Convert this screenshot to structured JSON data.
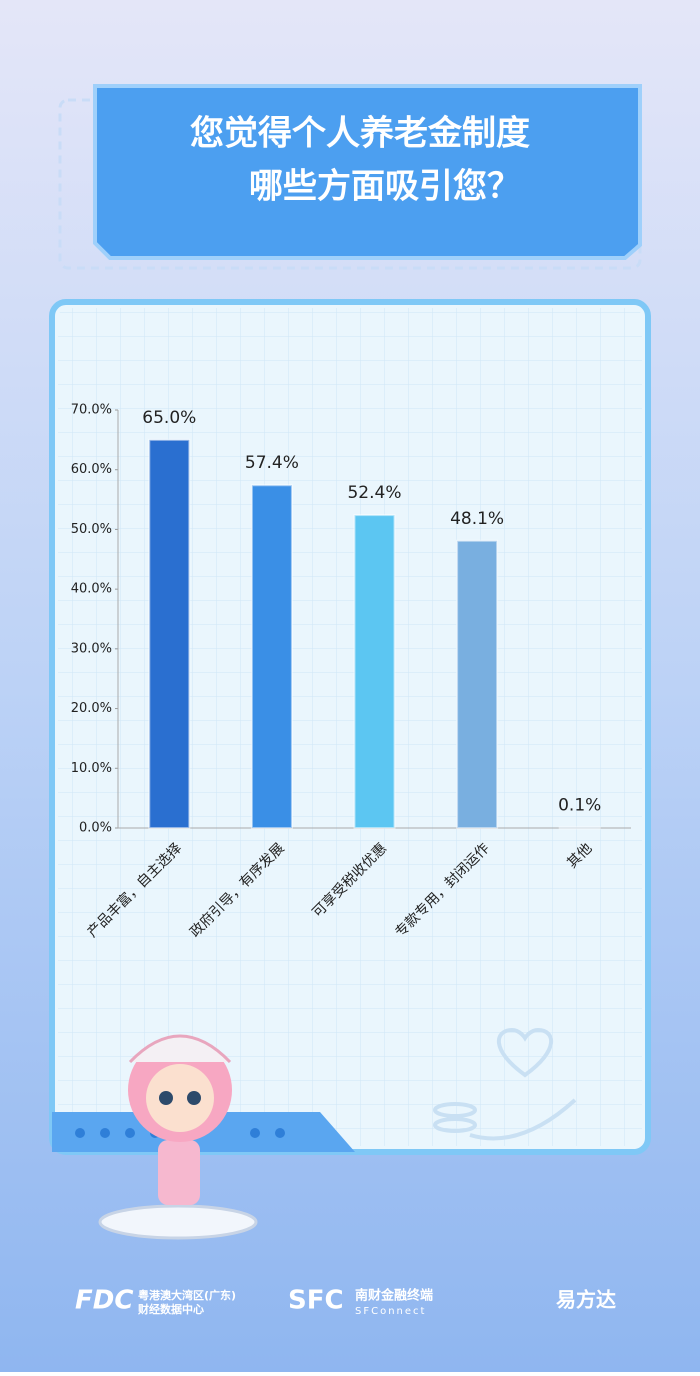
{
  "title_lines": [
    "您觉得个人养老金制度",
    "哪些方面吸引您？"
  ],
  "chart_data": {
    "type": "bar",
    "categories": [
      "产品丰富，自主选择",
      "政府引导，有序发展",
      "可享受税收优惠",
      "专款专用，封闭运作",
      "其他"
    ],
    "values": [
      65.0,
      57.4,
      52.4,
      48.1,
      0.1
    ],
    "value_labels": [
      "65.0%",
      "57.4%",
      "52.4%",
      "48.1%",
      "0.1%"
    ],
    "colors": [
      "#2a6fd0",
      "#3a8fe6",
      "#5cc6f2",
      "#79afe0",
      "#a7b6c6"
    ],
    "ylim": [
      0,
      70
    ],
    "yticks": [
      {
        "value": 0,
        "label": "0.0%"
      },
      {
        "value": 10,
        "label": "10.0%"
      },
      {
        "value": 20,
        "label": "20.0%"
      },
      {
        "value": 30,
        "label": "30.0%"
      },
      {
        "value": 40,
        "label": "40.0%"
      },
      {
        "value": 50,
        "label": "50.0%"
      },
      {
        "value": 60,
        "label": "60.0%"
      },
      {
        "value": 70,
        "label": "70.0%"
      }
    ]
  },
  "footer": {
    "fdc": "FDC",
    "fdc_name_1": "粤港澳大湾区(广东)",
    "fdc_name_2": "财经数据中心",
    "sfc": "SFC",
    "sfc_name": "南财金融终端",
    "sfc_en": "SFConnect",
    "efund": "易方达"
  }
}
